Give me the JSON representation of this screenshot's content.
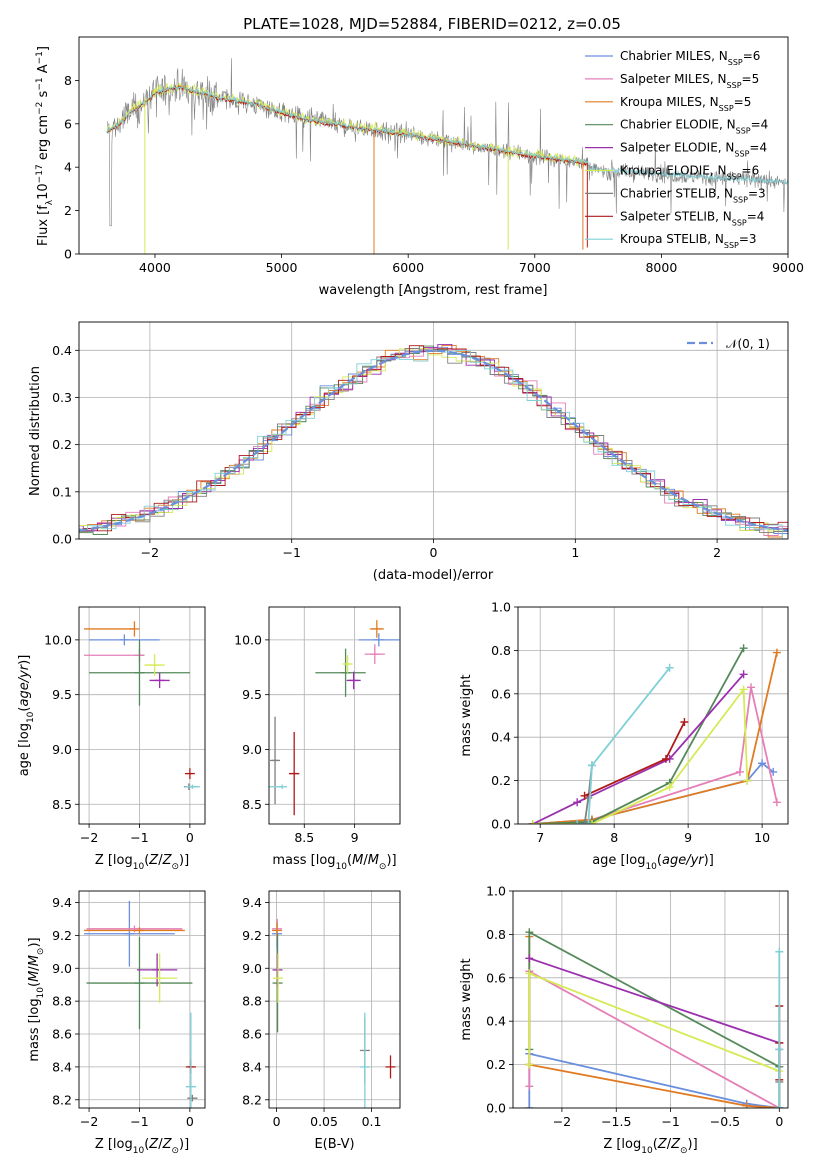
{
  "title": "PLATE=1028, MJD=52884, FIBERID=0212, z=0.05",
  "colors": {
    "Chabrier MILES": "#6a8fdd",
    "Salpeter MILES": "#e57fb8",
    "Kroupa MILES": "#e07b22",
    "Chabrier ELODIE": "#55895a",
    "Salpeter ELODIE": "#9b2fae",
    "Kroupa ELODIE": "#d6ea55",
    "Chabrier STELIB": "#808080",
    "Salpeter STELIB": "#b01a1a",
    "Kroupa STELIB": "#7fd0d6"
  },
  "chart_data": [
    {
      "id": "spectrum",
      "type": "line",
      "xlabel": "wavelength [Angstrom, rest frame]",
      "ylabel": "Flux [f_λ 10^-17 erg cm^-2 s^-1 A^-1]",
      "xlim": [
        3400,
        9000
      ],
      "ylim": [
        0,
        10
      ],
      "xticks": [
        4000,
        5000,
        6000,
        7000,
        8000,
        9000
      ],
      "yticks": [
        0,
        2,
        4,
        6,
        8
      ],
      "legend_loc": "upper right",
      "series": [
        {
          "name": "Chabrier MILES",
          "nssp": "6"
        },
        {
          "name": "Salpeter MILES",
          "nssp": "5"
        },
        {
          "name": "Kroupa MILES",
          "nssp": "5"
        },
        {
          "name": "Chabrier ELODIE",
          "nssp": "4"
        },
        {
          "name": "Salpeter ELODIE",
          "nssp": "4"
        },
        {
          "name": "Kroupa ELODIE",
          "nssp": "6"
        },
        {
          "name": "Chabrier STELIB",
          "nssp": "3"
        },
        {
          "name": "Salpeter STELIB",
          "nssp": "4"
        },
        {
          "name": "Kroupa STELIB",
          "nssp": "3"
        }
      ],
      "continuum": {
        "x": [
          3600,
          3700,
          3800,
          3900,
          4000,
          4100,
          4200,
          4300,
          4400,
          4500,
          4600,
          4800,
          5000,
          5200,
          5500,
          6000,
          6500,
          7000,
          7400
        ],
        "y": [
          5.6,
          5.9,
          6.5,
          6.9,
          7.4,
          7.6,
          7.7,
          7.5,
          7.4,
          7.2,
          7.1,
          6.9,
          6.5,
          6.2,
          5.9,
          5.5,
          5.0,
          4.5,
          4.2
        ]
      }
    },
    {
      "id": "residuals",
      "type": "line",
      "xlabel": "(data-model)/error",
      "ylabel": "Normed distribution",
      "xlim": [
        -2.5,
        2.5
      ],
      "ylim": [
        0,
        0.46
      ],
      "xticks": [
        -2,
        -1,
        0,
        1,
        2
      ],
      "yticks": [
        0.0,
        0.1,
        0.2,
        0.3,
        0.4
      ],
      "grid": true,
      "legend_loc": "upper right",
      "reference": "𝒩(0, 1)",
      "bin_width": 0.1
    },
    {
      "id": "z-age",
      "type": "scatter",
      "xlabel": "Z [log10(Z/Z☉)]",
      "ylabel": "age  [log10(age/yr)]",
      "xlim": [
        -2.2,
        0.3
      ],
      "ylim": [
        8.32,
        10.3
      ],
      "xticks": [
        -2,
        -1,
        0
      ],
      "yticks": [
        8.5,
        9.0,
        9.5,
        10.0
      ],
      "grid": true,
      "points": [
        {
          "model": "Chabrier MILES",
          "x": -1.3,
          "xerr": [
            0.7,
            0.7
          ],
          "y": 10.0,
          "yerr": 0.05
        },
        {
          "model": "Salpeter MILES",
          "x": -1.0,
          "xerr": [
            1.1,
            0.1
          ],
          "y": 9.86,
          "yerr": 0.06
        },
        {
          "model": "Kroupa MILES",
          "x": -1.1,
          "xerr": [
            1.0,
            0.0
          ],
          "y": 10.1,
          "yerr": 0.07
        },
        {
          "model": "Chabrier ELODIE",
          "x": -1.0,
          "xerr": [
            1.0,
            1.0
          ],
          "y": 9.7,
          "yerr": 0.3
        },
        {
          "model": "Salpeter ELODIE",
          "x": -0.6,
          "xerr": [
            0.2,
            0.2
          ],
          "y": 9.63,
          "yerr": 0.07
        },
        {
          "model": "Kroupa ELODIE",
          "x": -0.7,
          "xerr": [
            0.2,
            0.2
          ],
          "y": 9.77,
          "yerr": 0.1
        },
        {
          "model": "Chabrier STELIB",
          "x": -0.02,
          "xerr": [
            0.02,
            0.02
          ],
          "y": 8.66,
          "yerr": 0.03
        },
        {
          "model": "Salpeter STELIB",
          "x": 0.0,
          "xerr": [
            0.05,
            0.05
          ],
          "y": 8.78,
          "yerr": 0.05
        },
        {
          "model": "Kroupa STELIB",
          "x": 0.05,
          "xerr": [
            0.15,
            0.15
          ],
          "y": 8.66,
          "yerr": 0.02
        }
      ]
    },
    {
      "id": "mass-age",
      "type": "scatter",
      "xlabel": "mass [log10(M/M☉)]",
      "ylabel": "",
      "xlim": [
        8.15,
        9.45
      ],
      "ylim": [
        8.32,
        10.3
      ],
      "xticks": [
        8.5,
        9.0
      ],
      "yticks": [
        8.5,
        9.0,
        9.5,
        10.0
      ],
      "grid": true,
      "points": [
        {
          "model": "Chabrier MILES",
          "x": 9.24,
          "xerr": [
            0.2,
            0.2
          ],
          "y": 10.0,
          "yerr": 0.06
        },
        {
          "model": "Salpeter MILES",
          "x": 9.2,
          "xerr": [
            0.1,
            0.1
          ],
          "y": 9.87,
          "yerr": 0.09
        },
        {
          "model": "Kroupa MILES",
          "x": 9.22,
          "xerr": [
            0.07,
            0.07
          ],
          "y": 10.1,
          "yerr": 0.08
        },
        {
          "model": "Chabrier ELODIE",
          "x": 8.91,
          "xerr": [
            0.3,
            0.2
          ],
          "y": 9.7,
          "yerr": 0.22
        },
        {
          "model": "Salpeter ELODIE",
          "x": 8.99,
          "xerr": [
            0.07,
            0.07
          ],
          "y": 9.63,
          "yerr": 0.08
        },
        {
          "model": "Kroupa ELODIE",
          "x": 8.93,
          "xerr": [
            0.03,
            0.03
          ],
          "y": 9.78,
          "yerr": 0.08
        },
        {
          "model": "Chabrier STELIB",
          "x": 8.21,
          "xerr": [
            0.03,
            0.03
          ],
          "y": 8.9,
          "yerr": 0.4
        },
        {
          "model": "Salpeter STELIB",
          "x": 8.4,
          "xerr": [
            0.05,
            0.05
          ],
          "y": 8.78,
          "yerr": 0.38
        },
        {
          "model": "Kroupa STELIB",
          "x": 8.28,
          "xerr": [
            0.3,
            0.0
          ],
          "y": 8.66,
          "yerr": 0.02
        }
      ]
    },
    {
      "id": "age-weight",
      "type": "line",
      "xlabel": "age  [log10(age/yr)]",
      "ylabel": "mass weight",
      "xlim": [
        6.7,
        10.35
      ],
      "ylim": [
        0,
        1.0
      ],
      "xticks": [
        7,
        8,
        9,
        10
      ],
      "yticks": [
        0.0,
        0.2,
        0.4,
        0.6,
        0.8,
        1.0
      ],
      "grid": true,
      "series": [
        {
          "model": "Chabrier MILES",
          "x": [
            6.9,
            7.7,
            9.8,
            10.0,
            10.15
          ],
          "y": [
            0.0,
            0.02,
            0.2,
            0.28,
            0.24
          ]
        },
        {
          "model": "Salpeter MILES",
          "x": [
            6.9,
            7.7,
            9.7,
            9.85,
            10.2
          ],
          "y": [
            0.0,
            0.02,
            0.24,
            0.63,
            0.1
          ]
        },
        {
          "model": "Kroupa MILES",
          "x": [
            6.9,
            7.7,
            9.8,
            10.2
          ],
          "y": [
            0.0,
            0.02,
            0.2,
            0.79
          ]
        },
        {
          "model": "Chabrier ELODIE",
          "x": [
            6.9,
            7.7,
            8.75,
            9.75
          ],
          "y": [
            0.0,
            0.01,
            0.19,
            0.81
          ]
        },
        {
          "model": "Salpeter ELODIE",
          "x": [
            6.9,
            7.5,
            8.75,
            9.75
          ],
          "y": [
            0.0,
            0.1,
            0.3,
            0.69
          ]
        },
        {
          "model": "Kroupa ELODIE",
          "x": [
            6.9,
            7.7,
            8.75,
            9.75,
            9.8
          ],
          "y": [
            0.0,
            0.0,
            0.17,
            0.62,
            0.2
          ]
        },
        {
          "model": "Chabrier STELIB",
          "x": [
            7.6,
            7.65,
            7.7
          ],
          "y": [
            0.0,
            0.12,
            0.27
          ]
        },
        {
          "model": "Salpeter STELIB",
          "x": [
            7.6,
            8.7,
            8.95
          ],
          "y": [
            0.13,
            0.3,
            0.47
          ]
        },
        {
          "model": "Kroupa STELIB",
          "x": [
            7.5,
            7.65,
            7.7,
            8.75
          ],
          "y": [
            0.0,
            0.0,
            0.27,
            0.72
          ]
        }
      ]
    },
    {
      "id": "z-mass",
      "type": "scatter",
      "xlabel": "Z [log10(Z/Z☉)]",
      "ylabel": "mass [log10(M/M☉)]",
      "xlim": [
        -2.2,
        0.3
      ],
      "ylim": [
        8.15,
        9.47
      ],
      "xticks": [
        -2,
        -1,
        0
      ],
      "yticks": [
        8.2,
        8.4,
        8.6,
        8.8,
        9.0,
        9.2,
        9.4
      ],
      "grid": true,
      "points": [
        {
          "model": "Chabrier MILES",
          "x": -1.2,
          "xerr": [
            0.9,
            0.9
          ],
          "y": 9.21,
          "yerr": 0.2
        },
        {
          "model": "Salpeter MILES",
          "x": -1.1,
          "xerr": [
            0.95,
            0.95
          ],
          "y": 9.24,
          "yerr": 0.02
        },
        {
          "model": "Kroupa MILES",
          "x": -1.0,
          "xerr": [
            1.1,
            0.9
          ],
          "y": 9.23,
          "yerr": 0.02
        },
        {
          "model": "Chabrier ELODIE",
          "x": -1.0,
          "xerr": [
            1.05,
            1.05
          ],
          "y": 8.91,
          "yerr": 0.28
        },
        {
          "model": "Salpeter ELODIE",
          "x": -0.65,
          "xerr": [
            0.4,
            0.4
          ],
          "y": 8.99,
          "yerr": 0.1
        },
        {
          "model": "Kroupa ELODIE",
          "x": -0.6,
          "xerr": [
            0.35,
            0.35
          ],
          "y": 8.94,
          "yerr": 0.15
        },
        {
          "model": "Chabrier STELIB",
          "x": 0.05,
          "xerr": [
            0.1,
            0.1
          ],
          "y": 8.21,
          "yerr": 0.02
        },
        {
          "model": "Salpeter STELIB",
          "x": 0.02,
          "xerr": [
            0.05,
            0.05
          ],
          "y": 8.4,
          "yerr": 0.04
        },
        {
          "model": "Kroupa STELIB",
          "x": 0.02,
          "xerr": [
            0.1,
            0.1
          ],
          "y": 8.28,
          "yerr": 0.45
        }
      ]
    },
    {
      "id": "ebv-mass",
      "type": "scatter",
      "xlabel": "E(B-V)",
      "ylabel": "",
      "xlim": [
        -0.008,
        0.13
      ],
      "ylim": [
        8.15,
        9.47
      ],
      "xticks": [
        0.0,
        0.05,
        0.1
      ],
      "yticks": [
        8.2,
        8.4,
        8.6,
        8.8,
        9.0,
        9.2,
        9.4
      ],
      "grid": true,
      "points": [
        {
          "model": "Chabrier MILES",
          "x": 0.0005,
          "y": 9.21,
          "yerr": 0.09
        },
        {
          "model": "Salpeter MILES",
          "x": 0.0005,
          "y": 9.24,
          "yerr": 0.06
        },
        {
          "model": "Kroupa MILES",
          "x": 0.0005,
          "y": 9.23,
          "yerr": 0.05
        },
        {
          "model": "Chabrier ELODIE",
          "x": 0.001,
          "y": 8.91,
          "yerr": 0.3
        },
        {
          "model": "Salpeter ELODIE",
          "x": 0.001,
          "y": 8.99,
          "yerr": 0.1
        },
        {
          "model": "Kroupa ELODIE",
          "x": 0.0015,
          "y": 8.94,
          "yerr": 0.15
        },
        {
          "model": "Chabrier STELIB",
          "x": 0.093,
          "y": 8.5,
          "yerr": 0.2
        },
        {
          "model": "Salpeter STELIB",
          "x": 0.12,
          "y": 8.4,
          "yerr": 0.07
        },
        {
          "model": "Kroupa STELIB",
          "x": 0.093,
          "y": 8.4,
          "yerr": 0.33
        }
      ]
    },
    {
      "id": "z-weight",
      "type": "line",
      "xlabel": "Z [log10(Z/Z☉)]",
      "ylabel": "mass weight",
      "xlim": [
        -2.45,
        0.08
      ],
      "ylim": [
        0,
        1.0
      ],
      "xticks": [
        -2.0,
        -1.5,
        -1.0,
        -0.5,
        0.0
      ],
      "yticks": [
        0.0,
        0.2,
        0.4,
        0.6,
        0.8,
        1.0
      ],
      "grid": true,
      "series": [
        {
          "model": "Chabrier MILES",
          "x": [
            -2.3,
            -2.3,
            -0.3,
            0.0,
            0.0
          ],
          "y": [
            0.0,
            0.25,
            0.02,
            0.0,
            0.0
          ]
        },
        {
          "model": "Salpeter MILES",
          "x": [
            -2.3,
            -2.3,
            -2.3,
            0.0,
            0.0
          ],
          "y": [
            0.1,
            0.2,
            0.63,
            0.0,
            0.0
          ]
        },
        {
          "model": "Kroupa MILES",
          "x": [
            -2.3,
            -2.3,
            -2.3,
            -0.3,
            0.0
          ],
          "y": [
            0.79,
            0.2,
            0.2,
            0.01,
            0.0
          ]
        },
        {
          "model": "Chabrier ELODIE",
          "x": [
            -2.3,
            -2.3,
            0.0,
            0.0
          ],
          "y": [
            0.27,
            0.81,
            0.19,
            0.0
          ]
        },
        {
          "model": "Salpeter ELODIE",
          "x": [
            -2.3,
            0.0,
            0.0
          ],
          "y": [
            0.69,
            0.3,
            0.0
          ]
        },
        {
          "model": "Kroupa ELODIE",
          "x": [
            -2.3,
            -2.3,
            0.0,
            0.0
          ],
          "y": [
            0.2,
            0.62,
            0.17,
            0.0
          ]
        },
        {
          "model": "Chabrier STELIB",
          "x": [
            0.0,
            0.0,
            0.0
          ],
          "y": [
            0.0,
            0.12,
            0.27
          ]
        },
        {
          "model": "Salpeter STELIB",
          "x": [
            0.0,
            0.0,
            0.0
          ],
          "y": [
            0.13,
            0.3,
            0.47
          ]
        },
        {
          "model": "Kroupa STELIB",
          "x": [
            0.0,
            0.0,
            0.0,
            0.0
          ],
          "y": [
            0.0,
            0.0,
            0.27,
            0.72
          ]
        }
      ]
    }
  ]
}
